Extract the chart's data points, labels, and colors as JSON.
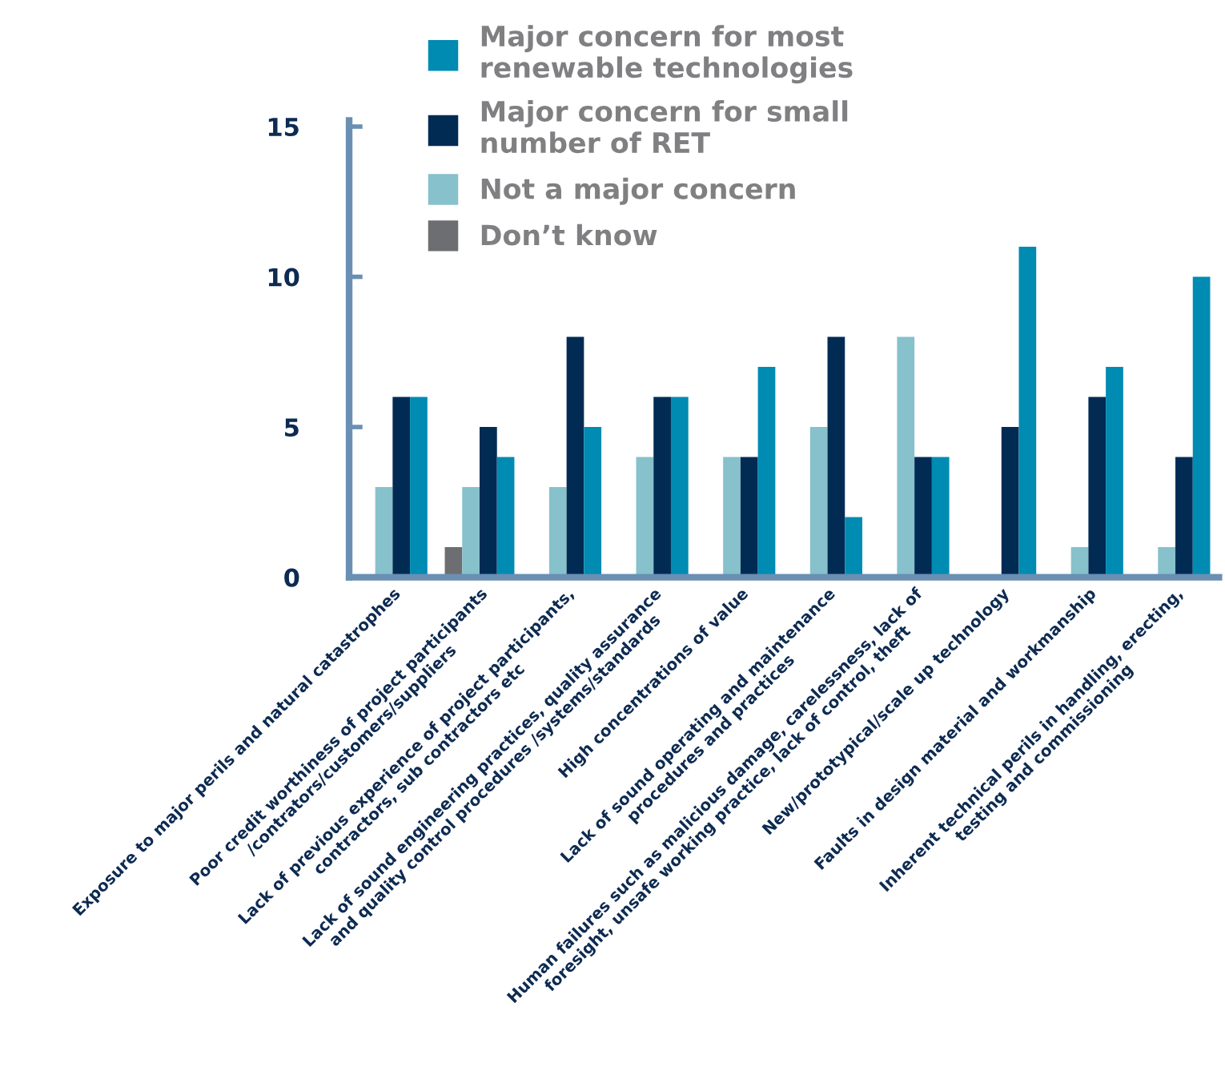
{
  "chart_data": {
    "type": "bar",
    "categories": [
      "Exposure to major perils and natural catastrophes",
      "Poor credit worthiness of project participants\n/contrators/customers/suppliers",
      "Lack of previous experience of project participants,\ncontractors, sub contractors etc",
      "Lack of sound engineering practices, quality assurance\nand quality control procedures /systems/standards",
      "High concentrations of value",
      "Lack of sound operating and maintenance\nprocedures and practices",
      "Human failures such as malicious damage, carelessness, lack of\nforesight, unsafe working practice, lack of control, theft",
      "New/prototypical/scale up technology",
      "Faults in design material and workmanship",
      "Inherent technical perils in handling, erecting,\ntesting and commissioning"
    ],
    "series": [
      {
        "name": "Don’t know",
        "color": "#6d6e71",
        "values": [
          0,
          1,
          0,
          0,
          0,
          0,
          0,
          0,
          0,
          0
        ]
      },
      {
        "name": "Not a major concern",
        "color": "#86c1cc",
        "values": [
          3,
          3,
          3,
          4,
          4,
          5,
          8,
          0,
          1,
          1
        ]
      },
      {
        "name": "Major concern for small number of RET",
        "color": "#022b54",
        "values": [
          6,
          5,
          8,
          6,
          4,
          8,
          4,
          5,
          6,
          4
        ]
      },
      {
        "name": "Major concern for most renewable technologies",
        "color": "#008bb2",
        "values": [
          6,
          4,
          5,
          6,
          7,
          2,
          4,
          11,
          7,
          10
        ]
      }
    ],
    "ylim": [
      0,
      15.2
    ],
    "yticks": [
      0,
      5,
      10,
      15
    ],
    "grid": false,
    "legend": "top"
  }
}
